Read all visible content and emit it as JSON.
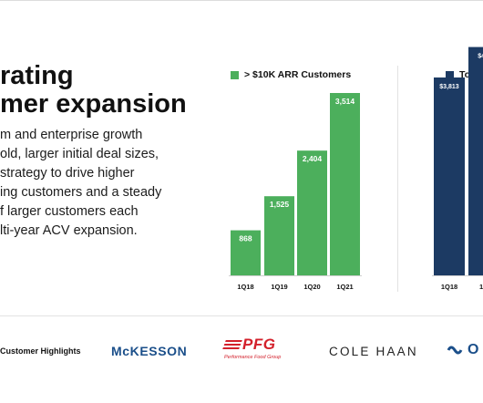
{
  "slide": {
    "headline_lines": [
      "rating",
      "mer expansion"
    ],
    "body_lines": [
      "m and enterprise growth",
      "old, larger initial deal sizes,",
      "strategy to drive higher",
      "ing customers and a steady",
      "f larger customers each",
      "lti-year ACV expansion."
    ]
  },
  "footer": {
    "highlights_label": "Customer Highlights",
    "logos": {
      "mckesson": "McKESSON",
      "pfg": "PFG",
      "pfg_sub": "Performance Food Group",
      "cole_haan": "COLE HAAN",
      "partial": "O"
    }
  },
  "chart_data": [
    {
      "type": "bar",
      "legend": "> $10K ARR Customers",
      "color": "#4caf5c",
      "categories": [
        "1Q18",
        "1Q19",
        "1Q20",
        "1Q21"
      ],
      "series": [
        {
          "name": "> $10K ARR Customers",
          "values": [
            868,
            1525,
            2404,
            3514
          ]
        }
      ],
      "data_labels": [
        "868",
        "1,525",
        "2,404",
        "3,514"
      ],
      "ylim": [
        0,
        3514
      ]
    },
    {
      "type": "bar",
      "legend": "Total",
      "color": "#1c3a63",
      "categories": [
        "1Q18",
        "1Q"
      ],
      "series": [
        {
          "name": "Total",
          "values": [
            3813,
            4400
          ]
        }
      ],
      "data_labels": [
        "$3,813",
        "$4,4"
      ]
    }
  ]
}
